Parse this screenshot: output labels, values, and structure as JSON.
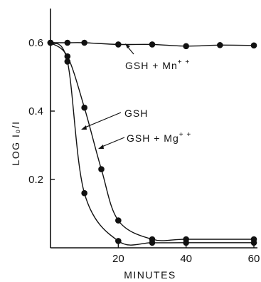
{
  "chart_data": {
    "type": "line",
    "xlabel": "MINUTES",
    "ylabel": "LOG I₀/I",
    "xlim": [
      0,
      60
    ],
    "ylim": [
      0,
      0.6
    ],
    "x_ticks": [
      "20",
      "40",
      "60"
    ],
    "y_ticks": [
      "0.2",
      "0.4",
      "0.6"
    ],
    "grid": false,
    "series": [
      {
        "name": "GSH + Mn⁺⁺",
        "points": [
          [
            0,
            0.6
          ],
          [
            5,
            0.6
          ],
          [
            10,
            0.6
          ],
          [
            20,
            0.595
          ],
          [
            30,
            0.595
          ],
          [
            40,
            0.59
          ],
          [
            50,
            0.593
          ],
          [
            60,
            0.592
          ]
        ]
      },
      {
        "name": "GSH",
        "points": [
          [
            0,
            0.6
          ],
          [
            5,
            0.545
          ],
          [
            10,
            0.16
          ],
          [
            20,
            0.02
          ],
          [
            30,
            0.015
          ],
          [
            40,
            0.015
          ],
          [
            60,
            0.015
          ]
        ]
      },
      {
        "name": "GSH + Mg⁺⁺",
        "points": [
          [
            0,
            0.6
          ],
          [
            5,
            0.56
          ],
          [
            10,
            0.41
          ],
          [
            15,
            0.23
          ],
          [
            20,
            0.08
          ],
          [
            30,
            0.025
          ],
          [
            40,
            0.025
          ],
          [
            60,
            0.025
          ]
        ]
      }
    ],
    "colors": {
      "line": "#111111",
      "marker": "#111111",
      "background": "#ffffff"
    }
  }
}
